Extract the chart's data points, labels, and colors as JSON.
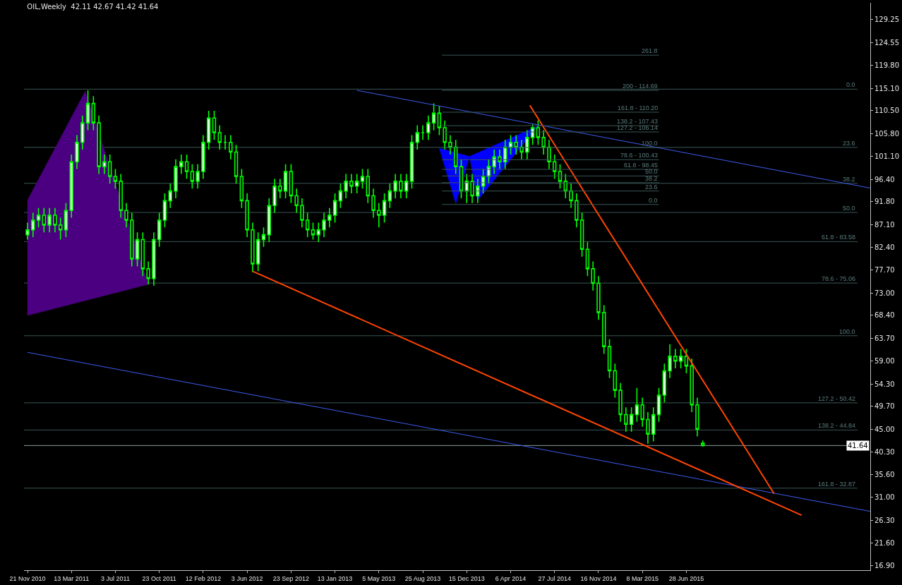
{
  "chart_data": {
    "type": "candlestick",
    "title": "OIL,Weekly  42.11 42.67 41.42 41.64",
    "color": "#00ff00",
    "x": [
      "2010-11-21",
      "2010-12-05",
      "2010-12-19",
      "2011-01-02",
      "2011-01-16",
      "2011-01-30",
      "2011-02-13",
      "2011-02-27",
      "2011-03-13",
      "2011-03-27",
      "2011-04-10",
      "2011-04-24",
      "2011-05-08",
      "2011-05-22",
      "2011-06-05",
      "2011-06-19",
      "2011-07-03",
      "2011-07-17",
      "2011-07-31",
      "2011-08-14",
      "2011-08-28",
      "2011-09-11",
      "2011-09-25",
      "2011-10-09",
      "2011-10-23",
      "2011-11-06",
      "2011-11-20",
      "2011-12-04",
      "2011-12-18",
      "2012-01-01",
      "2012-01-15",
      "2012-01-29",
      "2012-02-12",
      "2012-02-26",
      "2012-03-11",
      "2012-03-25",
      "2012-04-08",
      "2012-04-22",
      "2012-05-06",
      "2012-05-20",
      "2012-06-03",
      "2012-06-17",
      "2012-07-01",
      "2012-07-15",
      "2012-07-29",
      "2012-08-12",
      "2012-08-26",
      "2012-09-09",
      "2012-09-23",
      "2012-10-07",
      "2012-10-21",
      "2012-11-04",
      "2012-11-18",
      "2012-12-02",
      "2012-12-16",
      "2012-12-30",
      "2013-01-13",
      "2013-01-27",
      "2013-02-10",
      "2013-02-24",
      "2013-03-10",
      "2013-03-24",
      "2013-04-07",
      "2013-04-21",
      "2013-05-05",
      "2013-05-19",
      "2013-06-02",
      "2013-06-16",
      "2013-06-30",
      "2013-07-14",
      "2013-07-28",
      "2013-08-11",
      "2013-08-25",
      "2013-09-08",
      "2013-09-22",
      "2013-10-06",
      "2013-10-20",
      "2013-11-03",
      "2013-11-17",
      "2013-12-01",
      "2013-12-15",
      "2013-12-29",
      "2014-01-12",
      "2014-01-26",
      "2014-02-09",
      "2014-02-23",
      "2014-03-09",
      "2014-03-23",
      "2014-04-06",
      "2014-04-20",
      "2014-05-04",
      "2014-05-18",
      "2014-06-01",
      "2014-06-15",
      "2014-06-29",
      "2014-07-13",
      "2014-07-27",
      "2014-08-10",
      "2014-08-24",
      "2014-09-07",
      "2014-09-21",
      "2014-10-05",
      "2014-10-19",
      "2014-11-02",
      "2014-11-16",
      "2014-11-30",
      "2014-12-14",
      "2014-12-28",
      "2015-01-11",
      "2015-01-25",
      "2015-02-08",
      "2015-02-22",
      "2015-03-08",
      "2015-03-22",
      "2015-04-05",
      "2015-04-19",
      "2015-05-03",
      "2015-05-17",
      "2015-05-31",
      "2015-06-14",
      "2015-06-28",
      "2015-07-12",
      "2015-07-26",
      "2015-08-09"
    ],
    "ohlc": [
      [
        85,
        87.5,
        84,
        86
      ],
      [
        86,
        89.5,
        84.5,
        88
      ],
      [
        88,
        90.5,
        86.5,
        89
      ],
      [
        89,
        90.5,
        85.5,
        87
      ],
      [
        87,
        90.5,
        85.5,
        89
      ],
      [
        89,
        90.5,
        85.5,
        87
      ],
      [
        87,
        88.5,
        84,
        86
      ],
      [
        86,
        91.5,
        84.5,
        90
      ],
      [
        90,
        101.5,
        88.5,
        100
      ],
      [
        100,
        105.5,
        98.5,
        104
      ],
      [
        104,
        109.5,
        102.5,
        108
      ],
      [
        108,
        114.7,
        106.5,
        112
      ],
      [
        112,
        113.5,
        106.5,
        108
      ],
      [
        108,
        109.5,
        97.5,
        99
      ],
      [
        99,
        101.5,
        97.5,
        100
      ],
      [
        100,
        101.5,
        95.5,
        97
      ],
      [
        97,
        98.5,
        94.5,
        96
      ],
      [
        96,
        97.5,
        88.5,
        90
      ],
      [
        90,
        91.5,
        86.5,
        88
      ],
      [
        88,
        89.5,
        78.5,
        80
      ],
      [
        80,
        85.5,
        78.5,
        84
      ],
      [
        84,
        85.5,
        76.5,
        78
      ],
      [
        78,
        79.5,
        74.8,
        76
      ],
      [
        76,
        85.5,
        74.5,
        84
      ],
      [
        84,
        89.5,
        82.5,
        88
      ],
      [
        88,
        93.5,
        86.5,
        92
      ],
      [
        92,
        95.5,
        90.5,
        94
      ],
      [
        94,
        100.5,
        92.5,
        99
      ],
      [
        99,
        101.5,
        97.5,
        100
      ],
      [
        100,
        101.5,
        96.5,
        98
      ],
      [
        98,
        99.5,
        94.5,
        96
      ],
      [
        96,
        99.5,
        94.5,
        98
      ],
      [
        98,
        105.5,
        96.5,
        104
      ],
      [
        104,
        110.5,
        102.5,
        109
      ],
      [
        109,
        110.5,
        104.5,
        106
      ],
      [
        106,
        107.5,
        102.5,
        104
      ],
      [
        104,
        105.5,
        102.5,
        104
      ],
      [
        104,
        105.5,
        100.5,
        102
      ],
      [
        102,
        103.5,
        95.5,
        97
      ],
      [
        97,
        98.5,
        90.5,
        92
      ],
      [
        92,
        93.5,
        84.5,
        86
      ],
      [
        86,
        87.5,
        77.3,
        79
      ],
      [
        79,
        85.5,
        77.5,
        84
      ],
      [
        84,
        86.5,
        82.5,
        85
      ],
      [
        85,
        92.5,
        83.5,
        91
      ],
      [
        91,
        96.5,
        89.5,
        95
      ],
      [
        95,
        96.5,
        92.5,
        94
      ],
      [
        94,
        99.5,
        92.5,
        98
      ],
      [
        98,
        99.5,
        91.5,
        93
      ],
      [
        93,
        94.5,
        89.5,
        91
      ],
      [
        91,
        92.5,
        86.5,
        88
      ],
      [
        88,
        89.5,
        84.5,
        86
      ],
      [
        86,
        87.5,
        84,
        85
      ],
      [
        85,
        87.5,
        83.5,
        86
      ],
      [
        86,
        89.5,
        84.5,
        88
      ],
      [
        88,
        90.5,
        86.5,
        89
      ],
      [
        89,
        93.5,
        87.5,
        92
      ],
      [
        92,
        95.5,
        90.5,
        94
      ],
      [
        94,
        97.5,
        92.5,
        96
      ],
      [
        96,
        97.5,
        93.5,
        95
      ],
      [
        95,
        97.5,
        93.5,
        96
      ],
      [
        96,
        98.5,
        94.5,
        97
      ],
      [
        97,
        98.5,
        91.5,
        93
      ],
      [
        93,
        94.5,
        88.5,
        90
      ],
      [
        90,
        91.5,
        86.5,
        89
      ],
      [
        89,
        93.5,
        87.5,
        92
      ],
      [
        92,
        95.5,
        90.5,
        94
      ],
      [
        94,
        97.5,
        92.5,
        96
      ],
      [
        96,
        97.5,
        92.5,
        94
      ],
      [
        94,
        97.5,
        92.5,
        96
      ],
      [
        96,
        105.5,
        94.5,
        104
      ],
      [
        104,
        107.5,
        102.5,
        106
      ],
      [
        106,
        107.5,
        104.5,
        106
      ],
      [
        106,
        109.5,
        104.5,
        108
      ],
      [
        108,
        112,
        106.5,
        110
      ],
      [
        110,
        111.5,
        105.5,
        107
      ],
      [
        107,
        108.5,
        102.5,
        104
      ],
      [
        104,
        105.5,
        101.5,
        103
      ],
      [
        103,
        104.5,
        97.5,
        99
      ],
      [
        99,
        100.5,
        92.5,
        94
      ],
      [
        94,
        97.5,
        91.5,
        96
      ],
      [
        96,
        97.5,
        91.5,
        93
      ],
      [
        93,
        96.5,
        91.5,
        95
      ],
      [
        95,
        98.5,
        93.5,
        97
      ],
      [
        97,
        100.5,
        95.5,
        99
      ],
      [
        99,
        102.5,
        97.5,
        101
      ],
      [
        101,
        102.5,
        98.5,
        100
      ],
      [
        100,
        104.5,
        98.5,
        103
      ],
      [
        103,
        105.5,
        101.5,
        104
      ],
      [
        104,
        105.5,
        101.5,
        103
      ],
      [
        103,
        104.5,
        100.5,
        102
      ],
      [
        102,
        106.5,
        100.5,
        105
      ],
      [
        105,
        107.7,
        103.5,
        107
      ],
      [
        107,
        108.5,
        103.5,
        105
      ],
      [
        105,
        106.5,
        101.5,
        103
      ],
      [
        103,
        104.5,
        98.5,
        100
      ],
      [
        100,
        101.5,
        96.5,
        98
      ],
      [
        98,
        99.5,
        94.5,
        96
      ],
      [
        96,
        97.5,
        92.5,
        94
      ],
      [
        94,
        95.5,
        90.5,
        92
      ],
      [
        92,
        93.5,
        86.5,
        88
      ],
      [
        88,
        89.5,
        80.5,
        82
      ],
      [
        82,
        83.5,
        76.5,
        78
      ],
      [
        78,
        79.5,
        73.5,
        75
      ],
      [
        75,
        76.5,
        67.5,
        69
      ],
      [
        69,
        70.5,
        60.5,
        62
      ],
      [
        62,
        63.5,
        55.5,
        57
      ],
      [
        57,
        58.5,
        51.5,
        53
      ],
      [
        53,
        54.5,
        46.5,
        48
      ],
      [
        48,
        49.5,
        44.5,
        46
      ],
      [
        46,
        49.5,
        44.5,
        48
      ],
      [
        48,
        53.5,
        46.5,
        50
      ],
      [
        50,
        51.5,
        45.5,
        47
      ],
      [
        47,
        48.5,
        42,
        44
      ],
      [
        44,
        49.5,
        42.5,
        48
      ],
      [
        48,
        53.5,
        46.5,
        52
      ],
      [
        52,
        58.5,
        50.5,
        57
      ],
      [
        57,
        62.5,
        55.5,
        60
      ],
      [
        60,
        61.5,
        57.5,
        59
      ],
      [
        59,
        61.5,
        57.5,
        60
      ],
      [
        60,
        61.5,
        56.5,
        58
      ],
      [
        58,
        59.5,
        48.5,
        50
      ],
      [
        50,
        51.5,
        43.5,
        45
      ],
      [
        42.11,
        42.67,
        41.42,
        41.64
      ]
    ],
    "series": [
      {
        "type": "area",
        "color": "#4b0082",
        "x": [
          "2010-11-21",
          "2011-04-17",
          "2011-09-25",
          "2010-11-21"
        ],
        "values": [
          92.1,
          114.5,
          74.8,
          68.4
        ]
      },
      {
        "type": "area",
        "color": "#0000ff",
        "x": [
          "2013-10-06",
          "2013-11-17",
          "2013-12-22",
          "2014-01-12",
          "2014-06-15",
          "2013-12-22",
          "2013-10-06"
        ],
        "values": [
          102.8,
          91.4,
          101.1,
          92.1,
          107.4,
          101.1,
          102.8
        ]
      },
      {
        "type": "line",
        "color": "#3c5cf0",
        "x": [
          "2013-03-10",
          "2016-10-09"
        ],
        "values": [
          114.7,
          94.6
        ]
      },
      {
        "type": "line",
        "color": "#3c5cf0",
        "x": [
          "2010-11-21",
          "2016-10-09"
        ],
        "values": [
          60.8,
          28.1
        ]
      },
      {
        "type": "line",
        "color": "#ff4500",
        "x": [
          "2012-06-17",
          "2016-04-17"
        ],
        "values": [
          77.5,
          27.3
        ]
      },
      {
        "type": "line",
        "color": "#ff4500",
        "x": [
          "2014-05-25",
          "2016-02-07"
        ],
        "values": [
          111.6,
          31.7
        ]
      },
      {
        "type": "line",
        "color": "#3a5656",
        "x": [
          "2013-10-13",
          "2015-04-19"
        ],
        "values": [
          121.93,
          121.93
        ]
      },
      {
        "type": "line",
        "color": "#3a5656",
        "x": [
          "2013-10-13",
          "2015-04-19"
        ],
        "values": [
          114.69,
          114.69
        ]
      },
      {
        "type": "line",
        "color": "#3a5656",
        "x": [
          "2013-10-13",
          "2015-04-19"
        ],
        "values": [
          110.2,
          110.2
        ]
      },
      {
        "type": "line",
        "color": "#3a5656",
        "x": [
          "2013-10-13",
          "2015-04-19"
        ],
        "values": [
          107.43,
          107.43
        ]
      },
      {
        "type": "line",
        "color": "#3a5656",
        "x": [
          "2013-10-13",
          "2015-04-19"
        ],
        "values": [
          106.14,
          106.14
        ]
      },
      {
        "type": "line",
        "color": "#3a5656",
        "x": [
          "2013-10-13",
          "2015-04-19"
        ],
        "values": [
          102.95,
          102.95
        ]
      },
      {
        "type": "line",
        "color": "#3a5656",
        "x": [
          "2013-10-13",
          "2015-04-19"
        ],
        "values": [
          100.43,
          100.43
        ]
      },
      {
        "type": "line",
        "color": "#3a5656",
        "x": [
          "2013-10-13",
          "2015-04-19"
        ],
        "values": [
          98.45,
          98.45
        ]
      },
      {
        "type": "line",
        "color": "#3a5656",
        "x": [
          "2013-10-13",
          "2015-04-19"
        ],
        "values": [
          97.09,
          97.09
        ]
      },
      {
        "type": "line",
        "color": "#3a5656",
        "x": [
          "2013-10-13",
          "2015-04-19"
        ],
        "values": [
          95.7,
          95.7
        ]
      },
      {
        "type": "line",
        "color": "#3a5656",
        "x": [
          "2013-10-13",
          "2015-04-19"
        ],
        "values": [
          93.99,
          93.99
        ]
      },
      {
        "type": "line",
        "color": "#3a5656",
        "x": [
          "2013-10-13",
          "2015-04-19"
        ],
        "values": [
          91.22,
          91.22
        ]
      }
    ],
    "annotations": [
      {
        "text": "261.8",
        "x": "2015-04-19",
        "y": 121.93
      },
      {
        "text": "200 - 114.69",
        "x": "2015-04-19",
        "y": 114.69
      },
      {
        "text": "161.8 - 110.20",
        "x": "2015-04-19",
        "y": 110.2
      },
      {
        "text": "138.2 - 107.43",
        "x": "2015-04-19",
        "y": 107.43
      },
      {
        "text": "127.2 - 106.14",
        "x": "2015-04-19",
        "y": 106.14
      },
      {
        "text": "100.0",
        "x": "2015-04-19",
        "y": 102.95
      },
      {
        "text": "78.6 - 100.43",
        "x": "2015-04-19",
        "y": 100.43
      },
      {
        "text": "61.8 - 98.45",
        "x": "2015-04-19",
        "y": 98.45
      },
      {
        "text": "50.0",
        "x": "2015-04-19",
        "y": 97.09
      },
      {
        "text": "38.2",
        "x": "2015-04-19",
        "y": 95.7
      },
      {
        "text": "23.6",
        "x": "2015-04-19",
        "y": 93.99
      },
      {
        "text": "0.0",
        "x": "2015-04-19",
        "y": 91.22
      },
      {
        "text": "0.0",
        "x": "2016-09-04",
        "y": 114.94
      },
      {
        "text": "23.6",
        "x": "2016-09-04",
        "y": 102.97
      },
      {
        "text": "38.2",
        "x": "2016-09-04",
        "y": 95.57
      },
      {
        "text": "50.0",
        "x": "2016-09-04",
        "y": 89.58
      },
      {
        "text": "61.8 - 83.58",
        "x": "2016-09-04",
        "y": 83.58
      },
      {
        "text": "78.6 - 75.06",
        "x": "2016-09-04",
        "y": 75.06
      },
      {
        "text": "100.0",
        "x": "2016-09-04",
        "y": 64.22
      },
      {
        "text": "127.2 - 50.42",
        "x": "2016-09-04",
        "y": 50.42
      },
      {
        "text": "138.2 - 44.84",
        "x": "2016-09-04",
        "y": 44.84
      },
      {
        "text": "161.8 - 32.87",
        "x": "2016-09-04",
        "y": 32.87
      },
      {
        "text": "41.64",
        "y": 41.64
      }
    ],
    "ref_lines": [
      {
        "axis": "y",
        "value": 114.94,
        "color": "#3a5656"
      },
      {
        "axis": "y",
        "value": 102.97,
        "color": "#3a5656"
      },
      {
        "axis": "y",
        "value": 95.57,
        "color": "#3a5656"
      },
      {
        "axis": "y",
        "value": 89.58,
        "color": "#3a5656"
      },
      {
        "axis": "y",
        "value": 83.58,
        "color": "#3a5656"
      },
      {
        "axis": "y",
        "value": 75.06,
        "color": "#3a5656"
      },
      {
        "axis": "y",
        "value": 64.22,
        "color": "#3a5656"
      },
      {
        "axis": "y",
        "value": 50.42,
        "color": "#3a5656"
      },
      {
        "axis": "y",
        "value": 44.84,
        "color": "#3a5656"
      },
      {
        "axis": "y",
        "value": 32.87,
        "color": "#3a5656"
      },
      {
        "axis": "y",
        "value": 41.64,
        "color": "#8c9a9a"
      }
    ],
    "xlim": [
      "2010-11-12",
      "2016-10-09"
    ],
    "xticks": [
      {
        "value": "2010-11-21",
        "label": "21 Nov 2010"
      },
      {
        "value": "2011-03-13",
        "label": "13 Mar 2011"
      },
      {
        "value": "2011-07-03",
        "label": "3 Jul 2011"
      },
      {
        "value": "2011-10-23",
        "label": "23 Oct 2011"
      },
      {
        "value": "2012-02-12",
        "label": "12 Feb 2012"
      },
      {
        "value": "2012-06-03",
        "label": "3 Jun 2012"
      },
      {
        "value": "2012-09-23",
        "label": "23 Sep 2012"
      },
      {
        "value": "2013-01-13",
        "label": "13 Jan 2013"
      },
      {
        "value": "2013-05-05",
        "label": "5 May 2013"
      },
      {
        "value": "2013-08-25",
        "label": "25 Aug 2013"
      },
      {
        "value": "2013-12-15",
        "label": "15 Dec 2013"
      },
      {
        "value": "2014-04-06",
        "label": "6 Apr 2014"
      },
      {
        "value": "2014-07-27",
        "label": "27 Jul 2014"
      },
      {
        "value": "2014-11-16",
        "label": "16 Nov 2014"
      },
      {
        "value": "2015-03-08",
        "label": "8 Mar 2015"
      },
      {
        "value": "2015-06-28",
        "label": "28 Jun 2015"
      }
    ],
    "ylim": [
      16.0,
      132.7
    ],
    "yticks": [
      129.25,
      124.55,
      {
        "value": 119.8,
        "label": "119.80"
      },
      {
        "value": 115.1,
        "label": "115.10"
      },
      {
        "value": 110.5,
        "label": "110.50"
      },
      {
        "value": 105.8,
        "label": "105.80"
      },
      {
        "value": 101.1,
        "label": "101.10"
      },
      {
        "value": 96.4,
        "label": "96.40"
      },
      {
        "value": 91.8,
        "label": "91.80"
      },
      {
        "value": 87.1,
        "label": "87.10"
      },
      {
        "value": 82.4,
        "label": "82.40"
      },
      {
        "value": 77.7,
        "label": "77.70"
      },
      {
        "value": 73,
        "label": "73.00"
      },
      {
        "value": 68.4,
        "label": "68.40"
      },
      {
        "value": 63.7,
        "label": "63.70"
      },
      {
        "value": 59,
        "label": "59.00"
      },
      {
        "value": 54.3,
        "label": "54.30"
      },
      {
        "value": 49.7,
        "label": "49.70"
      },
      {
        "value": 45,
        "label": "45.00"
      },
      {
        "value": 40.3,
        "label": "40.30"
      },
      {
        "value": 35.6,
        "label": "35.60"
      },
      {
        "value": 31,
        "label": "31.00"
      },
      {
        "value": 26.3,
        "label": "26.30"
      },
      {
        "value": 21.6,
        "label": "21.60"
      },
      {
        "value": 16.9,
        "label": "16.90"
      }
    ]
  }
}
